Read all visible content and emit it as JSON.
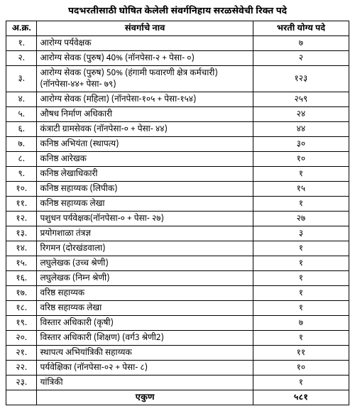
{
  "title": "पदभरतीसाठी घोषित केलेली संवर्गनिहाय सरळसेवेची रिक्त पदे",
  "columns": {
    "sr": "अ.क्र.",
    "name": "संवर्गाचे नाव",
    "count": "भरती योग्य पदे"
  },
  "rows": [
    {
      "sr": "१.",
      "name": "आरोग्य पर्यवेक्षक",
      "count": "७"
    },
    {
      "sr": "२.",
      "name": "आरोग्य सेवक (पुरुष) 40% (नॉनपेसा-२ + पेसा- ०)",
      "count": "२"
    },
    {
      "sr": "३.",
      "name": "आरोग्य सेवक (पुरुष) 50% (हंगामी फवारणी क्षेत्र कर्मचारी) (नॉनपेसा-४४+ पेसा- ७९)",
      "count": "१२३"
    },
    {
      "sr": "४.",
      "name": "आरोग्य सेवक (महिला) (नॉनपेसा-१०५ + पेसा-१५४)",
      "count": "२५९"
    },
    {
      "sr": "५.",
      "name": "औषध निर्माण अधिकारी",
      "count": "२४"
    },
    {
      "sr": "६.",
      "name": "कंत्राटी ग्रामसेवक (नॉनपेसा-० + पेसा- ४४)",
      "count": "४४"
    },
    {
      "sr": "७.",
      "name": "कनिष्ठ अभियंता (स्थापत्य)",
      "count": "३०"
    },
    {
      "sr": "८.",
      "name": "कनिष्ठ आरेखक",
      "count": "१०"
    },
    {
      "sr": "९.",
      "name": "कनिष्ठ लेखाधिकारी",
      "count": "१"
    },
    {
      "sr": "१०.",
      "name": "कनिष्ठ सहाय्यक (लिपीक)",
      "count": "१५"
    },
    {
      "sr": "११.",
      "name": "कनिष्ठ सहाय्यक लेखा",
      "count": "१"
    },
    {
      "sr": "१२.",
      "name": "पशुधन पर्यवेक्षक(नॉनपेसा-० + पेसा- २७)",
      "count": "२७"
    },
    {
      "sr": "१३.",
      "name": "प्रयोगशाळा तंत्रज्ञ",
      "count": "३"
    },
    {
      "sr": "१४.",
      "name": "रिगमन (दोरखंडवाला)",
      "count": "१"
    },
    {
      "sr": "१५.",
      "name": "लघुलेखक (उच्च श्रेणी)",
      "count": "१"
    },
    {
      "sr": "१६.",
      "name": "लघुलेखक (निम्न श्रेणी)",
      "count": "१"
    },
    {
      "sr": "१७.",
      "name": "वरिष्ठ सहाय्यक",
      "count": "१"
    },
    {
      "sr": "१८.",
      "name": "वरिष्ठ सहाय्यक लेखा",
      "count": "१"
    },
    {
      "sr": "१९.",
      "name": "विस्तार अधिकारी (कृषी)",
      "count": "७"
    },
    {
      "sr": "२०.",
      "name": "विस्तार अधिकारी (शिक्षण) (वर्ग3 श्रेणी2)",
      "count": "१"
    },
    {
      "sr": "२१.",
      "name": "स्थापत्य अभियांत्रिकी सहाय्यक",
      "count": "११"
    },
    {
      "sr": "२२.",
      "name": "पर्यवेक्षिका (नॉनपेसा-०२ + पेसा- ८)",
      "count": "१०"
    },
    {
      "sr": "२३.",
      "name": "यांत्रिकी",
      "count": "१"
    }
  ],
  "total": {
    "label": "एकुण",
    "value": "५८१"
  }
}
